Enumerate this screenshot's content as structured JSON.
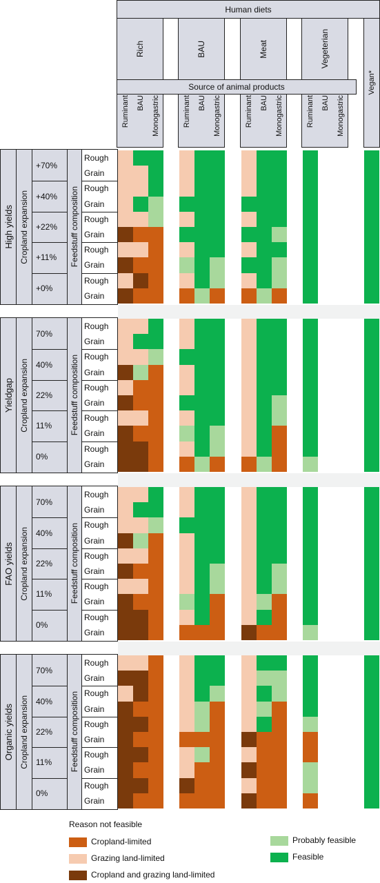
{
  "header": {
    "human_diets": "Human diets",
    "diets": [
      "Rich",
      "BAU",
      "Meat",
      "Vegeterian"
    ],
    "vegan": "Vegan*",
    "source_title": "Source of animal products",
    "sources": [
      "Ruminant",
      "BAU",
      "Monogastric"
    ]
  },
  "row_labels": {
    "cropland_expansion": "Cropland expansion",
    "feedstuff_composition": "Feedstuff composition",
    "feed_types": [
      "Rough",
      "Grain"
    ]
  },
  "panels": [
    {
      "yield_label": "High yields",
      "expansions": [
        "+70%",
        "+40%",
        "+22%",
        "+11%",
        "+0%"
      ],
      "cells": [
        "PGG.PGG.PGG.G.G",
        "PPG.PGG.PGG.G.G",
        "PPG.PGG.PGG.G.G",
        "PGL.GGG.GGG.G.G",
        "PPL.PGG.PGG.G.G",
        "DCC.GGG.GGL.G.G",
        "PPC.PGG.PGG.G.G",
        "DCC.LGL.GGL.G.G",
        "PDC.PGL.PGL.G.G",
        "DCC.CLC.CLC.G.G"
      ]
    },
    {
      "yield_label": "Yieldgap",
      "expansions": [
        "70%",
        "40%",
        "22%",
        "11%",
        "0%"
      ],
      "cells": [
        "PPG.PGG.PGG.G.G",
        "PGG.PGG.PGG.G.G",
        "PPL.GGG.PGG.G.G",
        "DLC.PGG.PGG.G.G",
        "PCC.PGG.PGG.G.G",
        "DCC.GGG.PGL.G.G",
        "PPC.PGG.PGL.G.G",
        "DCC.LGL.PGC.G.G",
        "DDC.PGL.PGC.G.G",
        "DDC.CLC.CLC.L.G"
      ]
    },
    {
      "yield_label": "FAO yields",
      "expansions": [
        "70%",
        "40%",
        "22%",
        "11%",
        "0%"
      ],
      "cells": [
        "PPG.PGG.PGG.G.G",
        "PGG.PGG.PGG.G.G",
        "PPL.GGG.PGG.G.G",
        "DLC.PGG.PGG.G.G",
        "PPC.PGG.PGG.G.G",
        "DCC.PGL.PGL.G.G",
        "PPC.PGL.PGL.G.G",
        "DCC.LGC.PLC.G.G",
        "DDC.PGC.PGC.G.G",
        "DDC.CCC.DCC.L.G"
      ]
    },
    {
      "yield_label": "Organic yields",
      "expansions": [
        "70%",
        "40%",
        "22%",
        "11%",
        "0%"
      ],
      "cells": [
        "PPC.PGG.PGG.G.G",
        "DDC.PGG.PLL.G.G",
        "PDC.PGL.PGL.G.G",
        "DCC.PLC.PLC.G.G",
        "DDC.PLC.PGC.L.G",
        "DCC.CCC.DCC.C.G",
        "DDC.PLC.PCC.C.G",
        "DCC.PCC.DCC.L.G",
        "DDC.DCC.PCC.L.G",
        "DCC.CCC.DCC.C.G"
      ]
    }
  ],
  "legend": {
    "title": "Reason not feasible",
    "items": [
      {
        "key": "C",
        "label": "Cropland-limited",
        "color": "#cc5e13"
      },
      {
        "key": "P",
        "label": "Grazing land-limited",
        "color": "#f6cbb0"
      },
      {
        "key": "D",
        "label": "Cropland and grazing land-limited",
        "color": "#7a3a0c"
      },
      {
        "key": "L",
        "label": "Probably feasible",
        "color": "#a8d89c"
      },
      {
        "key": "G",
        "label": "Feasible",
        "color": "#0cb14e"
      }
    ]
  }
}
